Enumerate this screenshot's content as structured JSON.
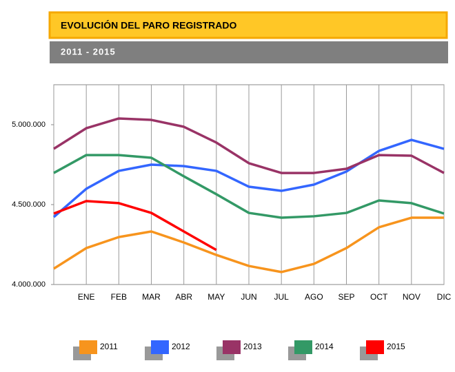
{
  "chart_data": {
    "type": "line",
    "title": "EVOLUCIÓN DEL PARO REGISTRADO",
    "subtitle": "2011 - 2015",
    "categories": [
      null,
      "ENE",
      "FEB",
      "MAR",
      "ABR",
      "MAY",
      "JUN",
      "JUL",
      "AGO",
      "SEP",
      "OCT",
      "NOV",
      "DIC"
    ],
    "series": [
      {
        "name": "2011",
        "color": "#f7941d",
        "values": [
          4099000,
          4228000,
          4297000,
          4332000,
          4263000,
          4185000,
          4116000,
          4078000,
          4129000,
          4228000,
          4358000,
          4418000,
          4418000
        ]
      },
      {
        "name": "2012",
        "color": "#3366ff",
        "values": [
          4422000,
          4599000,
          4711000,
          4750000,
          4741000,
          4711000,
          4612000,
          4586000,
          4625000,
          4707000,
          4836000,
          4905000,
          4849000
        ]
      },
      {
        "name": "2013",
        "color": "#993366",
        "values": [
          4849000,
          4978000,
          5039000,
          5030000,
          4987000,
          4888000,
          4759000,
          4698000,
          4698000,
          4724000,
          4810000,
          4806000,
          4698000
        ]
      },
      {
        "name": "2014",
        "color": "#339966",
        "values": [
          4698000,
          4810000,
          4810000,
          4793000,
          4677000,
          4565000,
          4448000,
          4418000,
          4427000,
          4448000,
          4526000,
          4509000,
          4444000
        ]
      },
      {
        "name": "2015",
        "color": "#ff0000",
        "values": [
          4444000,
          4522000,
          4509000,
          4448000,
          4332000,
          4216000,
          null,
          null,
          null,
          null,
          null,
          null,
          null
        ]
      }
    ],
    "ylim": [
      4000000,
      5250000
    ],
    "yticks": [
      {
        "value": 4000000,
        "label": "4.000.000"
      },
      {
        "value": 4500000,
        "label": "4.500.000"
      },
      {
        "value": 5000000,
        "label": "5.000.000"
      }
    ],
    "xgrid": true,
    "legend": "bottom"
  }
}
